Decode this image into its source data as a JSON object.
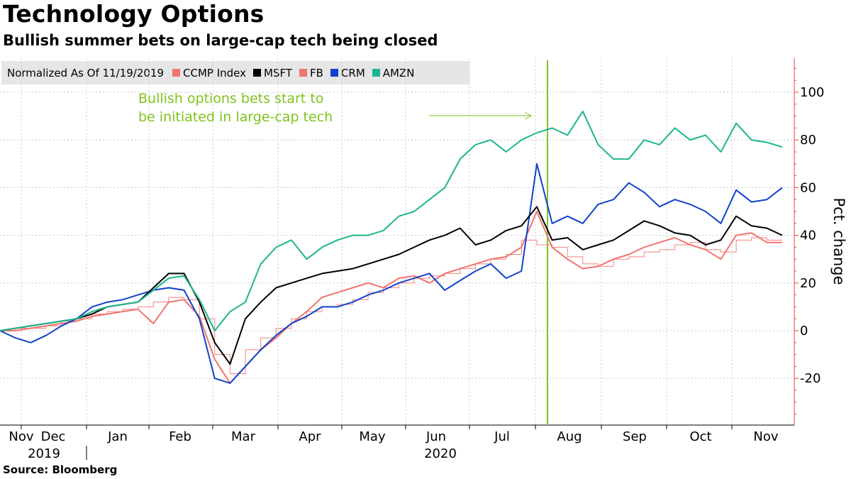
{
  "title": "Technology Options",
  "subtitle": "Bullish summer bets on large-cap tech being closed",
  "source": "Source: Bloomberg",
  "legend": {
    "normalized_label": "Normalized As Of 11/19/2019",
    "items": [
      {
        "label": "CCMP Index",
        "color": "#f07470"
      },
      {
        "label": "MSFT",
        "color": "#000000"
      },
      {
        "label": "FB",
        "color": "#f07470"
      },
      {
        "label": "CRM",
        "color": "#1142cc"
      },
      {
        "label": "AMZN",
        "color": "#1db58f"
      }
    ]
  },
  "annotation": {
    "line1": "Bullish options bets start to",
    "line2": "be initiated in large-cap tech",
    "color": "#80c31c",
    "marker_date": "2020-07-27"
  },
  "chart_data": {
    "type": "line",
    "x_unit": "weeks since 2019-11-19",
    "ylabel": "Pct. change",
    "ylim": [
      -40,
      115
    ],
    "yticks": [
      -20,
      0,
      20,
      40,
      60,
      80,
      100
    ],
    "y_axis_side": "right",
    "grid": true,
    "x_month_labels": [
      "Nov",
      "Dec",
      "Jan",
      "Feb",
      "Mar",
      "Apr",
      "May",
      "Jun",
      "Jul",
      "Aug",
      "Sep",
      "Oct",
      "Nov"
    ],
    "x_year_labels": [
      "2019",
      "2020"
    ],
    "x": [
      0,
      1,
      2,
      3,
      4,
      5,
      6,
      7,
      8,
      9,
      10,
      11,
      12,
      13,
      14,
      15,
      16,
      17,
      18,
      19,
      20,
      21,
      22,
      23,
      24,
      25,
      26,
      27,
      28,
      29,
      30,
      31,
      32,
      33,
      34,
      35,
      36,
      37,
      38,
      39,
      40,
      41,
      42,
      43,
      44,
      45,
      46,
      47,
      48,
      49,
      50,
      51
    ],
    "series": [
      {
        "name": "CCMP Index",
        "color": "#f07470",
        "style": "step",
        "values": [
          0,
          1,
          1,
          2,
          4,
          5,
          7,
          8,
          9,
          10,
          12,
          14,
          13,
          5,
          -10,
          -18,
          -8,
          -3,
          1,
          5,
          8,
          10,
          11,
          13,
          16,
          18,
          20,
          22,
          23,
          24,
          26,
          28,
          30,
          32,
          38,
          36,
          35,
          31,
          28,
          27,
          30,
          31,
          33,
          34,
          36,
          37,
          34,
          33,
          38,
          39,
          38,
          38
        ]
      },
      {
        "name": "MSFT",
        "color": "#000000",
        "style": "line",
        "values": [
          0,
          1,
          2,
          3,
          4,
          5,
          7,
          10,
          11,
          12,
          18,
          24,
          24,
          12,
          -5,
          -14,
          5,
          12,
          18,
          20,
          22,
          24,
          25,
          26,
          28,
          30,
          32,
          35,
          38,
          40,
          43,
          36,
          38,
          42,
          44,
          52,
          38,
          39,
          34,
          36,
          38,
          42,
          46,
          44,
          41,
          40,
          36,
          38,
          48,
          44,
          43,
          40
        ]
      },
      {
        "name": "FB",
        "color": "#f07470",
        "style": "line",
        "values": [
          0,
          0,
          1,
          2,
          3,
          4,
          6,
          7,
          8,
          9,
          3,
          12,
          13,
          6,
          -12,
          -22,
          -15,
          -8,
          -3,
          3,
          8,
          14,
          16,
          18,
          20,
          18,
          22,
          23,
          20,
          24,
          26,
          28,
          30,
          31,
          35,
          50,
          35,
          30,
          26,
          27,
          30,
          32,
          35,
          37,
          39,
          36,
          34,
          30,
          40,
          41,
          37,
          37
        ]
      },
      {
        "name": "CRM",
        "color": "#1142cc",
        "style": "line",
        "values": [
          0,
          -3,
          -5,
          -2,
          2,
          5,
          10,
          12,
          13,
          15,
          17,
          18,
          17,
          5,
          -20,
          -22,
          -15,
          -8,
          -2,
          3,
          6,
          10,
          10,
          12,
          15,
          17,
          20,
          22,
          24,
          17,
          21,
          25,
          28,
          22,
          25,
          70,
          45,
          48,
          45,
          53,
          55,
          62,
          58,
          52,
          55,
          53,
          50,
          45,
          59,
          54,
          55,
          60
        ]
      },
      {
        "name": "AMZN",
        "color": "#1db58f",
        "style": "line",
        "values": [
          0,
          1,
          2,
          3,
          4,
          5,
          8,
          10,
          11,
          12,
          17,
          22,
          23,
          13,
          0,
          8,
          12,
          28,
          35,
          38,
          30,
          35,
          38,
          40,
          40,
          42,
          48,
          50,
          55,
          60,
          72,
          78,
          80,
          75,
          80,
          83,
          85,
          82,
          92,
          78,
          72,
          72,
          80,
          78,
          85,
          80,
          82,
          75,
          87,
          80,
          79,
          77
        ]
      }
    ]
  }
}
